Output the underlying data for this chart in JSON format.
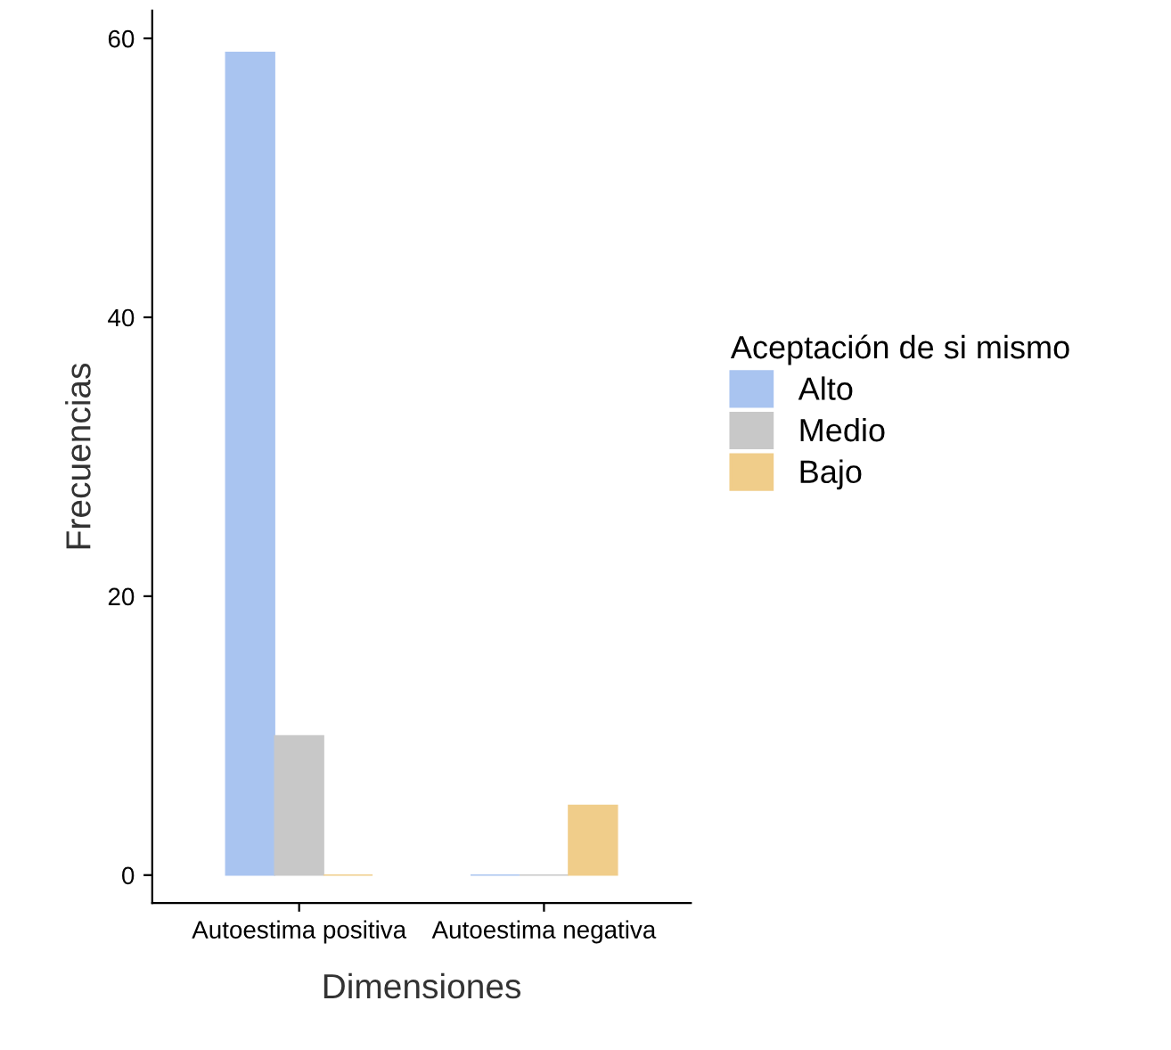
{
  "chart_data": {
    "type": "bar",
    "xlabel": "Dimensiones",
    "ylabel": "Frecuencias",
    "legend_title": "Aceptación de si mismo",
    "categories": [
      "Autoestima positiva",
      "Autoestima negativa"
    ],
    "series": [
      {
        "name": "Alto",
        "color": "#a9c4f0",
        "values": [
          59,
          0
        ]
      },
      {
        "name": "Medio",
        "color": "#c8c8c8",
        "values": [
          10,
          0
        ]
      },
      {
        "name": "Bajo",
        "color": "#f0cd8a",
        "values": [
          0,
          5
        ]
      }
    ],
    "ylim": [
      -2,
      62
    ],
    "yticks": [
      0,
      20,
      40,
      60
    ],
    "grid": false,
    "legend": "right"
  }
}
